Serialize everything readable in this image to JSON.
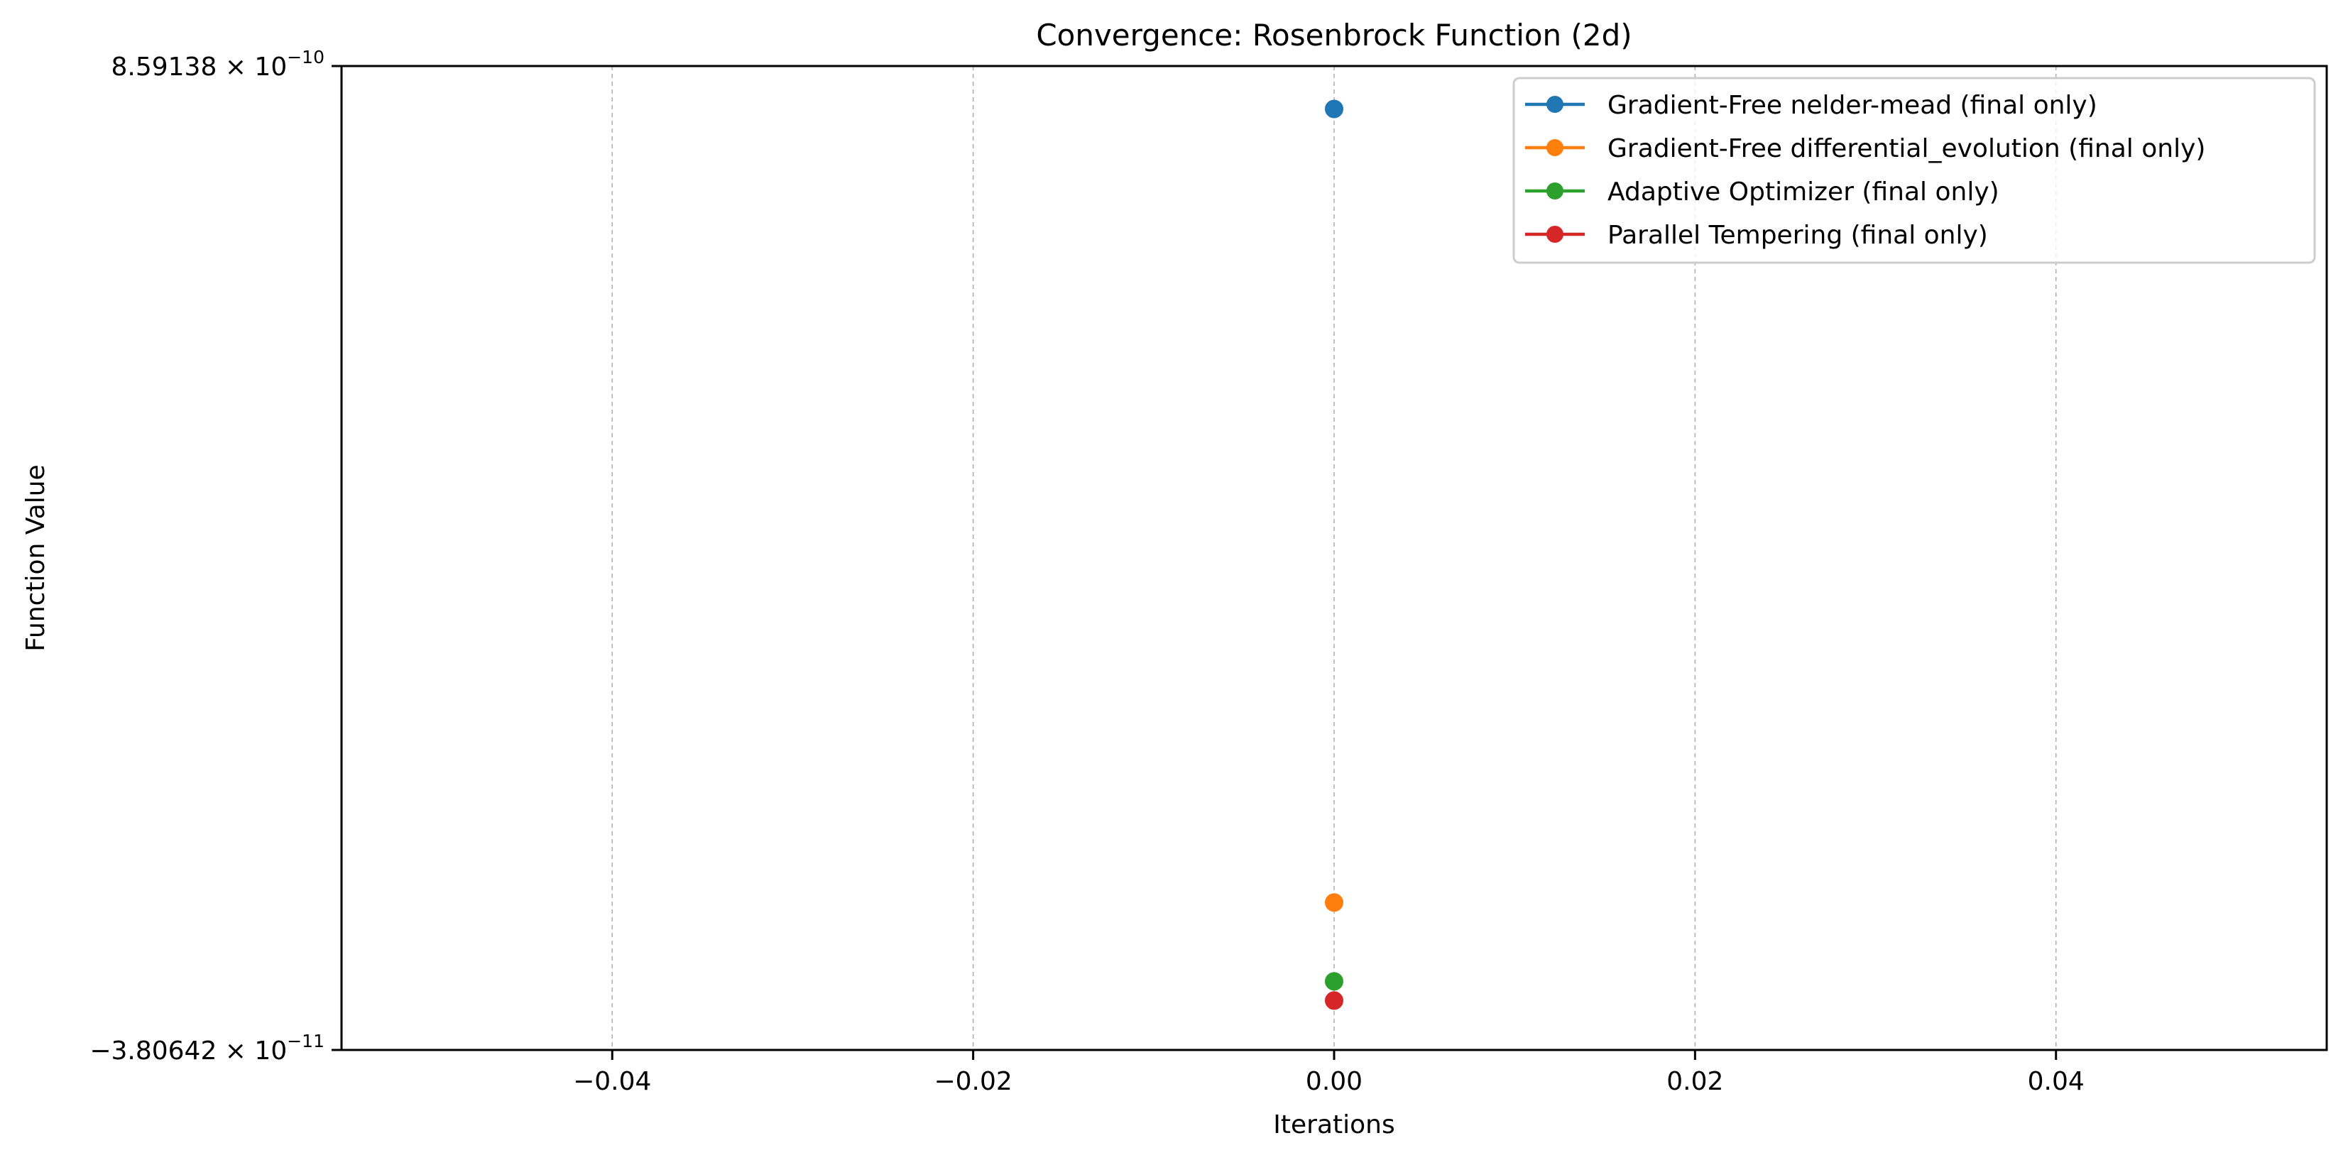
{
  "chart_data": {
    "type": "scatter",
    "title": "Convergence: Rosenbrock Function (2d)",
    "xlabel": "Iterations",
    "ylabel": "Function Value",
    "xlim": [
      -0.055,
      0.055
    ],
    "ylim": [
      -3.80642e-11,
      8.59138e-10
    ],
    "grid": "x-axis, dashed",
    "legend_position": "top-right",
    "x_ticks": [
      {
        "value": -0.04,
        "label": "−0.04"
      },
      {
        "value": -0.02,
        "label": "−0.02"
      },
      {
        "value": 0.0,
        "label": "0.00"
      },
      {
        "value": 0.02,
        "label": "0.02"
      },
      {
        "value": 0.04,
        "label": "0.04"
      }
    ],
    "y_ticks": [
      {
        "value": 8.59138e-10,
        "mantissa": "8.59138",
        "exponent": "−10"
      },
      {
        "value": -3.80642e-11,
        "mantissa": "−3.80642",
        "exponent": "−11"
      }
    ],
    "series": [
      {
        "name": "Gradient-Free nelder-mead (final only)",
        "color": "#1f77b4",
        "points": [
          {
            "x": 0.0,
            "y": 8.2e-10
          }
        ]
      },
      {
        "name": "Gradient-Free differential_evolution (final only)",
        "color": "#ff7f0e",
        "points": [
          {
            "x": 0.0,
            "y": 9.64e-11
          }
        ]
      },
      {
        "name": "Adaptive Optimizer (final only)",
        "color": "#2ca02c",
        "points": [
          {
            "x": 0.0,
            "y": 2.45e-11
          }
        ]
      },
      {
        "name": "Parallel Tempering (final only)",
        "color": "#d62728",
        "points": [
          {
            "x": 0.0,
            "y": 7e-12
          }
        ]
      }
    ]
  }
}
